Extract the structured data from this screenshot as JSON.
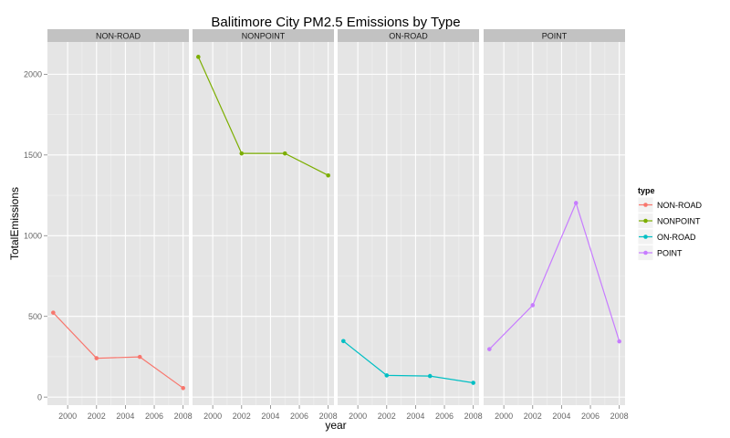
{
  "chart_data": {
    "type": "line",
    "title": "Balitimore City PM2.5 Emissions by Type",
    "xlabel": "year",
    "ylabel": "TotalEmissions",
    "x": [
      1999,
      2002,
      2005,
      2008
    ],
    "xlim": [
      1998.6,
      2008.4
    ],
    "xticks": [
      2000,
      2002,
      2004,
      2006,
      2008
    ],
    "ylim": [
      -50,
      2200
    ],
    "yticks": [
      0,
      500,
      1000,
      1500,
      2000
    ],
    "grid": true,
    "facet_by": "type",
    "legend": {
      "title": "type",
      "position": "right"
    },
    "series": [
      {
        "name": "NON-ROAD",
        "color": "#F8766D",
        "values": [
          522.94,
          240.85,
          248.93,
          55.82
        ]
      },
      {
        "name": "NONPOINT",
        "color": "#7CAE00",
        "values": [
          2107.63,
          1509.5,
          1509.5,
          1373.21
        ]
      },
      {
        "name": "ON-ROAD",
        "color": "#00BFC4",
        "values": [
          346.82,
          134.31,
          130.43,
          88.28
        ]
      },
      {
        "name": "POINT",
        "color": "#C77CFF",
        "values": [
          296.8,
          569.26,
          1202.49,
          344.98
        ]
      }
    ]
  }
}
